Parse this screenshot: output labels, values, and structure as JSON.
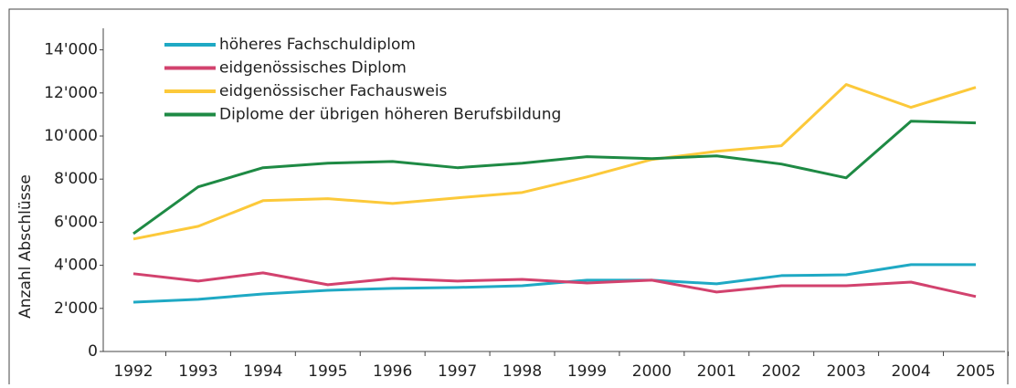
{
  "chart_data": {
    "type": "line",
    "y_label": "Anzahl Abschlüsse",
    "categories": [
      "1992",
      "1993",
      "1994",
      "1995",
      "1996",
      "1997",
      "1998",
      "1999",
      "2000",
      "2001",
      "2002",
      "2003",
      "2004",
      "2005"
    ],
    "series": [
      {
        "name": "höheres Fachschuldiplom",
        "color": "#1fa9c4",
        "values": [
          2290,
          2420,
          2670,
          2840,
          2930,
          2970,
          3050,
          3310,
          3310,
          3140,
          3520,
          3560,
          4030,
          4030
        ]
      },
      {
        "name": "eidgenössisches Diplom",
        "color": "#d2426e",
        "values": [
          3610,
          3270,
          3650,
          3100,
          3390,
          3270,
          3350,
          3180,
          3310,
          2760,
          3050,
          3050,
          3220,
          2550
        ]
      },
      {
        "name": "eidgenössischer Fachausweis",
        "color": "#fcc93a",
        "values": [
          5220,
          5810,
          7000,
          7090,
          6870,
          7130,
          7380,
          8100,
          8910,
          9290,
          9550,
          12390,
          11330,
          12260
        ]
      },
      {
        "name": "Diplome der übrigen höheren Berufsbildung",
        "color": "#1e8a44",
        "values": [
          5470,
          7640,
          8530,
          8740,
          8820,
          8530,
          8740,
          9040,
          8950,
          9080,
          8700,
          8060,
          10690,
          10610
        ]
      }
    ],
    "ylim": [
      0,
      15000
    ],
    "yticks": [
      0,
      {
        "value": 2000,
        "label": "2'000"
      },
      {
        "value": 4000,
        "label": "4'000"
      },
      {
        "value": 6000,
        "label": "6'000"
      },
      {
        "value": 8000,
        "label": "8'000"
      },
      {
        "value": 10000,
        "label": "10'000"
      },
      {
        "value": 12000,
        "label": "12'000"
      },
      {
        "value": 14000,
        "label": "14'000"
      }
    ],
    "grid": true,
    "legend": "upper left"
  }
}
